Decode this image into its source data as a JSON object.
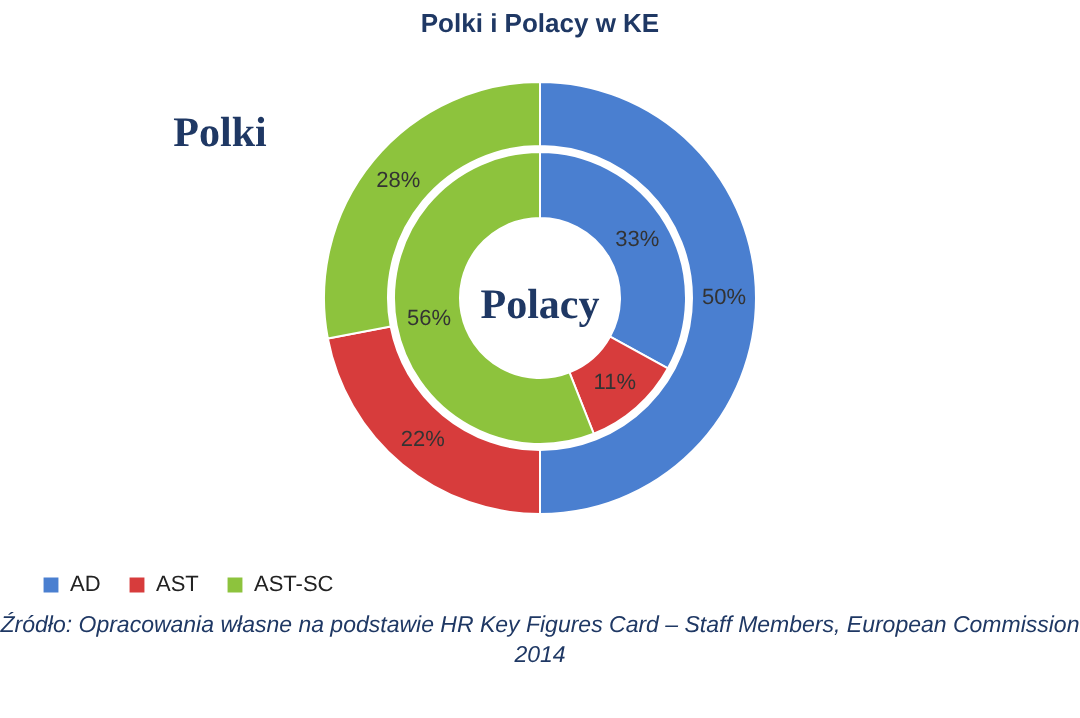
{
  "chart_data": {
    "type": "donut",
    "title": "Polki i Polacy w KE",
    "categories": [
      "AD",
      "AST",
      "AST-SC"
    ],
    "colors": [
      "#4a7fd0",
      "#d73c3c",
      "#8dc33d"
    ],
    "series": [
      {
        "name": "Polki",
        "values": [
          50,
          22,
          28
        ],
        "value_labels": [
          "50%",
          "22%",
          "28%"
        ]
      },
      {
        "name": "Polacy",
        "values": [
          33,
          11,
          56
        ],
        "value_labels": [
          "33%",
          "11%",
          "56%"
        ]
      }
    ],
    "legend": "bottom",
    "annotations": [
      "Źródło: Opracowania własne na podstawie HR Key Figures Card – Staff Members, European Commission 2014"
    ]
  }
}
